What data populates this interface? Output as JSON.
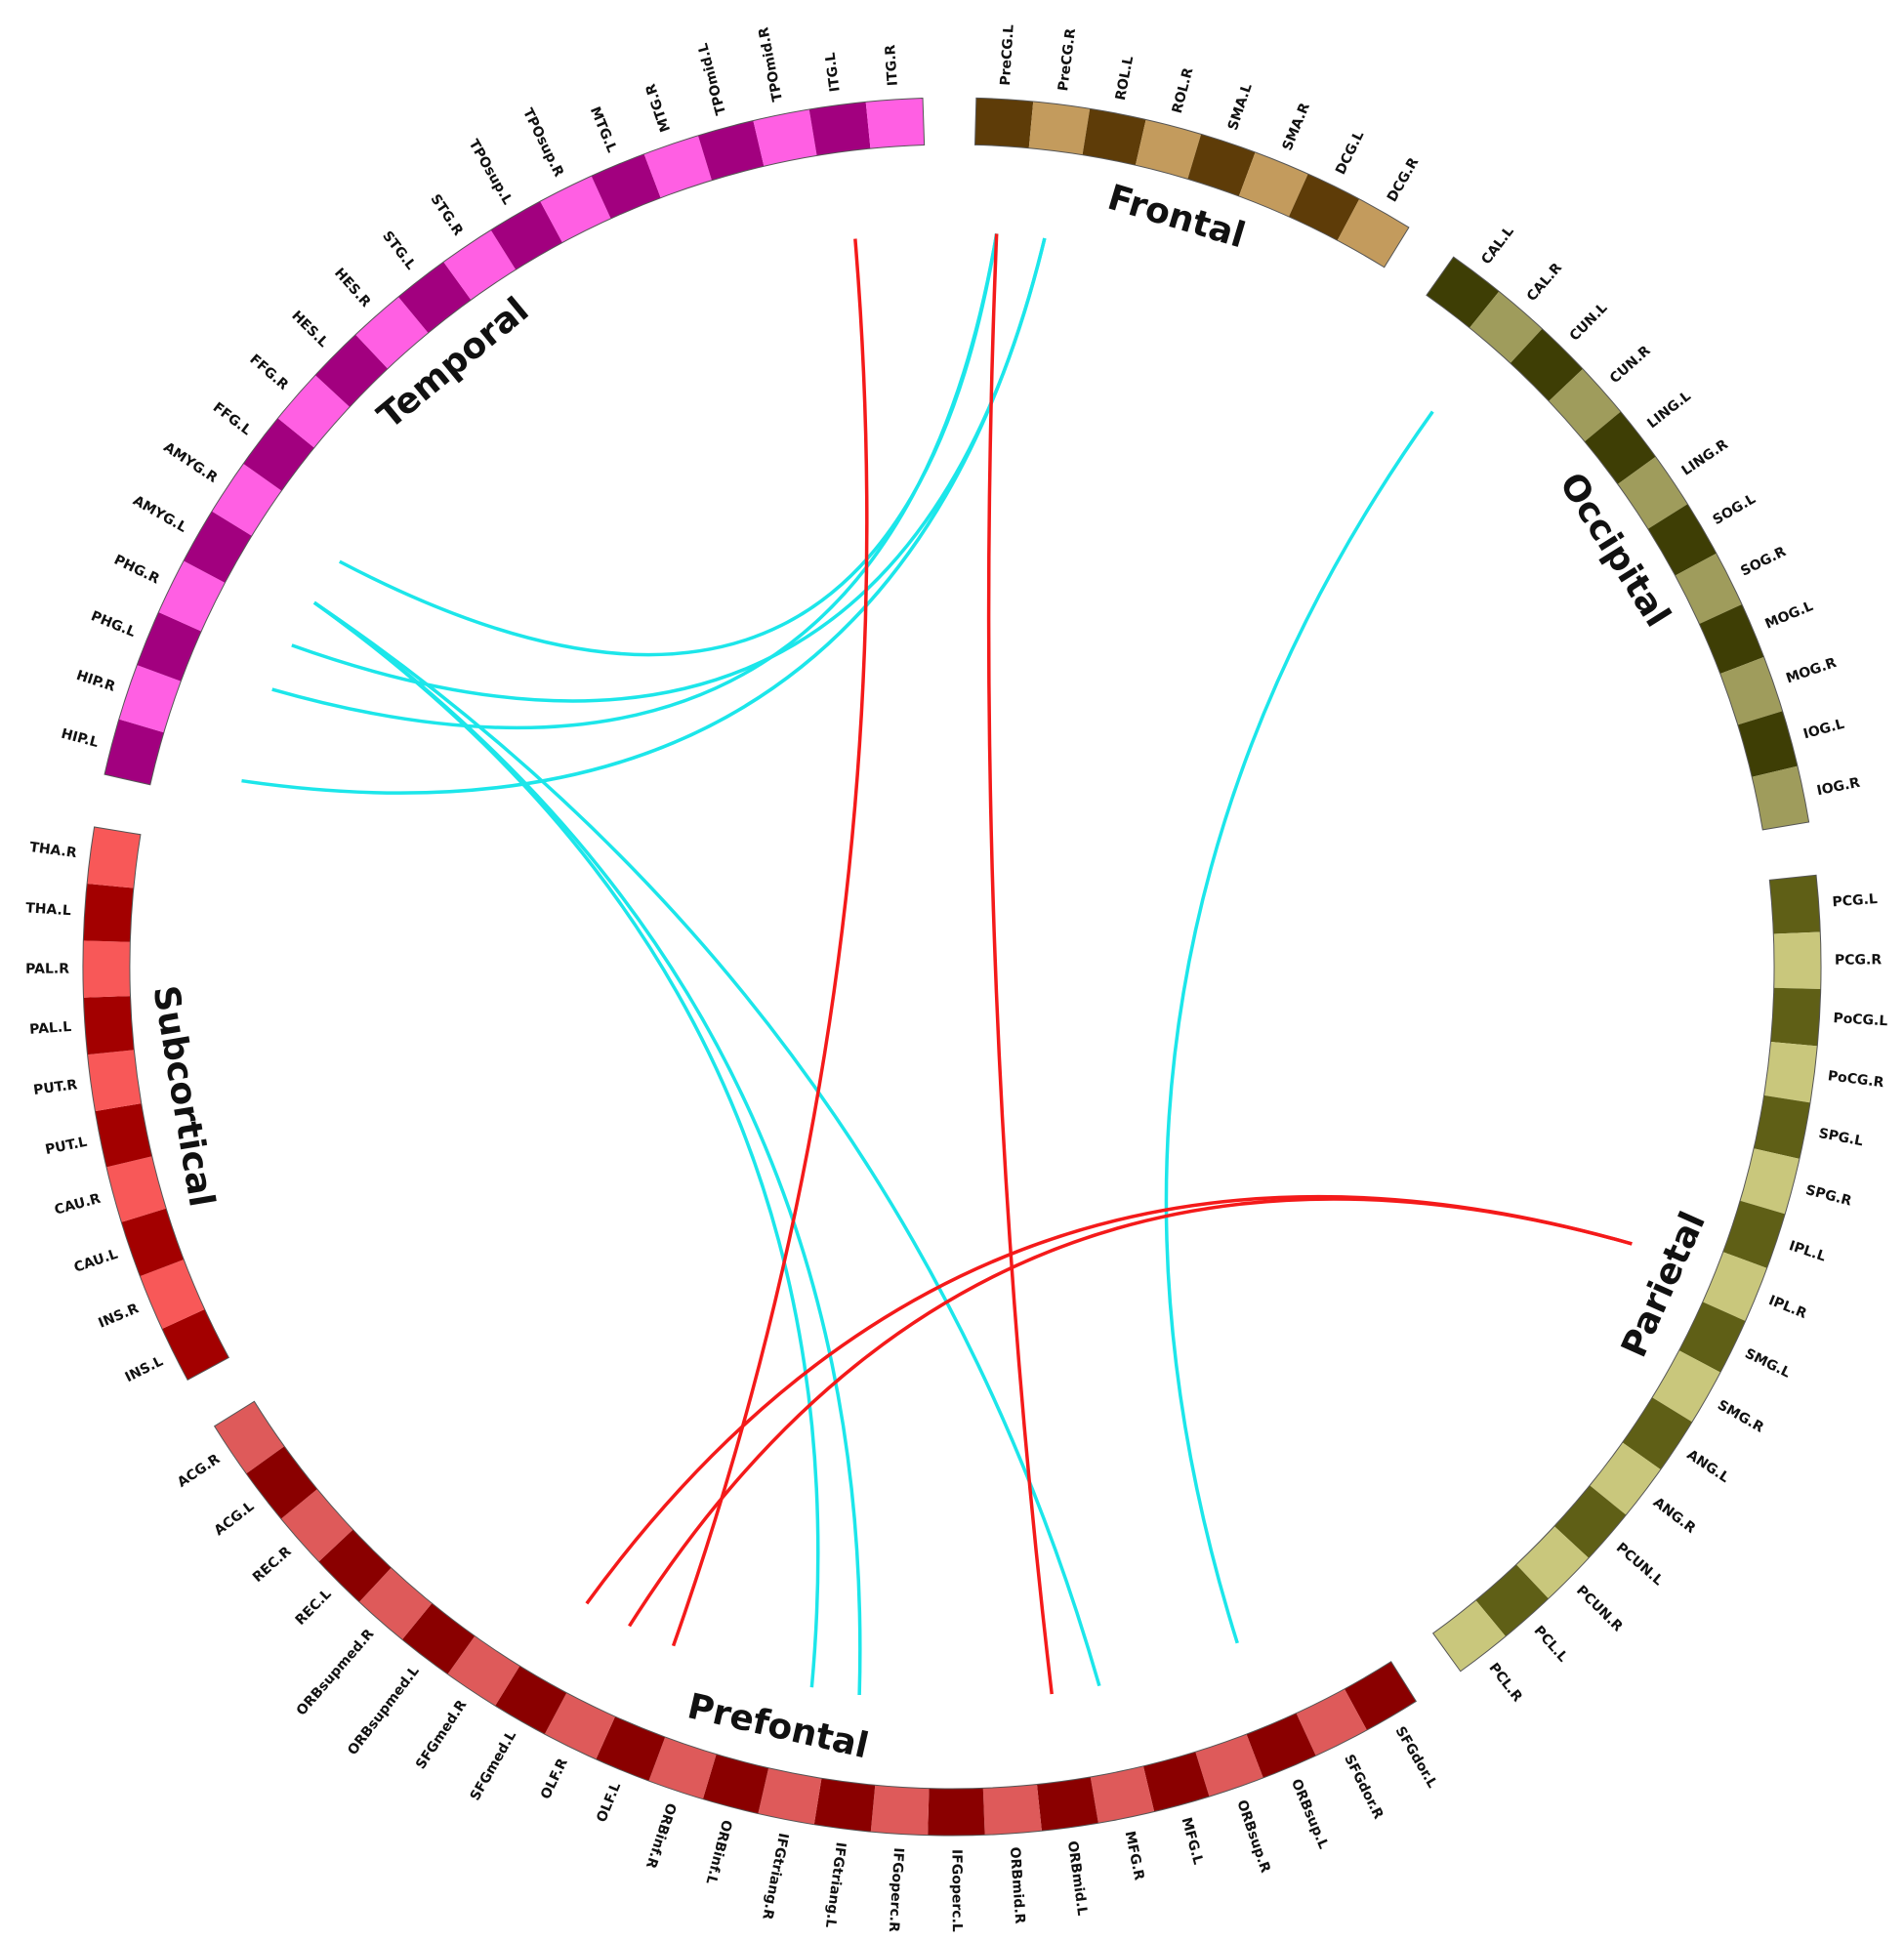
{
  "groups": [
    {
      "name": "Frontal",
      "dark": "#5e3c08",
      "light": "#c39b5d",
      "nodes": [
        "PreCG.L",
        "PreCG.R",
        "ROL.L",
        "ROL.R",
        "SMA.L",
        "SMA.R",
        "DCG.L",
        "DCG.R"
      ]
    },
    {
      "name": "Occipital",
      "dark": "#3e3e05",
      "light": "#9f9c5c",
      "nodes": [
        "CAL.L",
        "CAL.R",
        "CUN.L",
        "CUN.R",
        "LING.L",
        "LING.R",
        "SOG.L",
        "SOG.R",
        "MOG.L",
        "MOG.R",
        "IOG.L",
        "IOG.R"
      ]
    },
    {
      "name": "Parietal",
      "dark": "#5f5f16",
      "light": "#c9c77c",
      "nodes": [
        "PCG.L",
        "PCG.R",
        "PoCG.L",
        "PoCG.R",
        "SPG.L",
        "SPG.R",
        "IPL.L",
        "IPL.R",
        "SMG.L",
        "SMG.R",
        "ANG.L",
        "ANG.R",
        "PCUN.L",
        "PCUN.R",
        "PCL.L",
        "PCL.R"
      ]
    },
    {
      "name": "Prefontal",
      "dark": "#8a0000",
      "light": "#de5a5a",
      "nodes": [
        "SFGdor.L",
        "SFGdor.R",
        "ORBsup.L",
        "ORBsup.R",
        "MFG.L",
        "MFG.R",
        "ORBmid.L",
        "ORBmid.R",
        "IFGoperc.L",
        "IFGoperc.R",
        "IFGtriang.L",
        "IFGtriang.R",
        "ORBinf.L",
        "ORBinf.R",
        "OLF.L",
        "OLF.R",
        "SFGmed.L",
        "SFGmed.R",
        "ORBsupmed.L",
        "ORBsupmed.R",
        "REC.L",
        "REC.R",
        "ACG.L",
        "ACG.R"
      ]
    },
    {
      "name": "Subcortical",
      "dark": "#a30000",
      "light": "#f85858",
      "nodes": [
        "INS.L",
        "INS.R",
        "CAU.L",
        "CAU.R",
        "PUT.L",
        "PUT.R",
        "PAL.L",
        "PAL.R",
        "THA.L",
        "THA.R"
      ]
    },
    {
      "name": "Temporal",
      "dark": "#a2007f",
      "light": "#ff5fe3",
      "nodes": [
        "HIP.L",
        "HIP.R",
        "PHG.L",
        "PHG.R",
        "AMYG.L",
        "AMYG.R",
        "FFG.L",
        "FFG.R",
        "HES.L",
        "HES.R",
        "STG.L",
        "STG.R",
        "TPOsup.L",
        "TPOsup.R",
        "MTG.L",
        "MTG.R",
        "TPOmid.L",
        "TPOmid.R",
        "ITG.L",
        "ITG.R"
      ]
    }
  ],
  "connections": [
    {
      "from": "HIP.L",
      "to": "PreCG.R",
      "color": "#1ce6ea"
    },
    {
      "from": "PHG.L",
      "to": "PreCG.L",
      "color": "#1ce6ea"
    },
    {
      "from": "PHG.R",
      "to": "PreCG.R",
      "color": "#1ce6ea"
    },
    {
      "from": "AMYG.R",
      "to": "PreCG.L",
      "color": "#1ce6ea"
    },
    {
      "from": "AMYG.L",
      "to": "IFGtriang.R",
      "color": "#1ce6ea"
    },
    {
      "from": "AMYG.L",
      "to": "IFGtriang.L",
      "color": "#1ce6ea"
    },
    {
      "from": "AMYG.L",
      "to": "MFG.R",
      "color": "#1ce6ea"
    },
    {
      "from": "CAL.R",
      "to": "ORBsup.L",
      "color": "#1ce6ea"
    },
    {
      "from": "ITG.L",
      "to": "OLF.L",
      "color": "#f41a1a"
    },
    {
      "from": "PreCG.L",
      "to": "ORBmid.L",
      "color": "#f41a1a"
    },
    {
      "from": "IPL.R",
      "to": "SFGmed.L",
      "color": "#f41a1a"
    },
    {
      "from": "IPL.R",
      "to": "OLF.R",
      "color": "#f41a1a"
    }
  ]
}
